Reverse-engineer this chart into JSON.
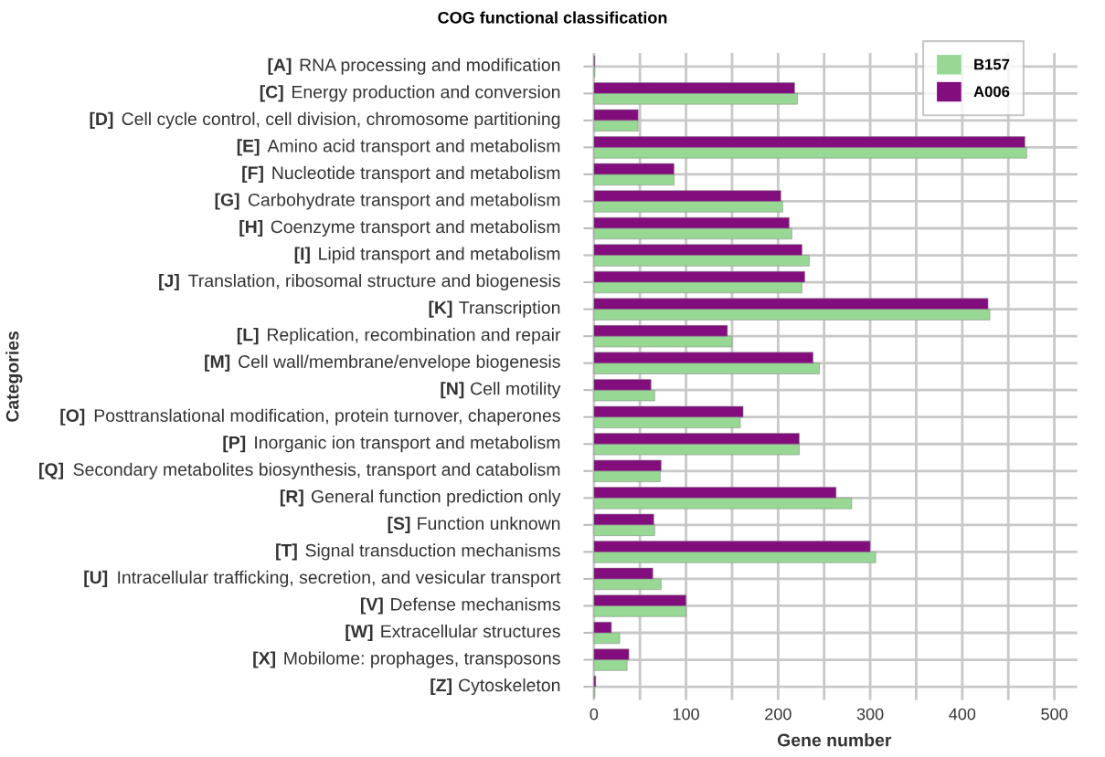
{
  "chart_data": {
    "type": "bar",
    "orientation": "horizontal",
    "title": "COG functional classification",
    "xlabel": "Gene number",
    "ylabel": "Categories",
    "categories": [
      "[A] RNA processing and modification",
      "[C] Energy production and conversion",
      "[D] Cell cycle control, cell division, chromosome partitioning",
      "[E] Amino acid transport and metabolism",
      "[F] Nucleotide transport and metabolism",
      "[G] Carbohydrate transport and metabolism",
      "[H] Coenzyme transport and metabolism",
      "[I] Lipid transport and metabolism",
      "[J] Translation, ribosomal structure and biogenesis",
      "[K] Transcription",
      "[L] Replication, recombination and repair",
      "[M] Cell wall/membrane/envelope biogenesis",
      "[N] Cell motility",
      "[O] Posttranslational modification, protein turnover, chaperones",
      "[P] Inorganic ion transport and metabolism",
      "[Q] Secondary metabolites biosynthesis, transport and catabolism",
      "[R] General function prediction only",
      "[S] Function unknown",
      "[T] Signal transduction mechanisms",
      "[U] Intracellular trafficking, secretion, and vesicular transport",
      "[V] Defense mechanisms",
      "[W] Extracellular structures",
      "[X] Mobilome: prophages, transposons",
      "[Z] Cytoskeleton"
    ],
    "series": [
      {
        "name": "B157",
        "color": "#98d895",
        "values": [
          1,
          221,
          48,
          470,
          87,
          205,
          215,
          234,
          226,
          430,
          150,
          245,
          66,
          159,
          223,
          72,
          280,
          66,
          306,
          73,
          100,
          28,
          36,
          1
        ]
      },
      {
        "name": "A006",
        "color": "#820e7d",
        "values": [
          1,
          218,
          48,
          468,
          87,
          203,
          212,
          226,
          229,
          428,
          145,
          238,
          62,
          162,
          223,
          73,
          263,
          65,
          300,
          64,
          100,
          19,
          38,
          2
        ]
      }
    ],
    "xlim": [
      -3,
      525
    ],
    "xticks": [
      0,
      {
        "value": 50,
        "label": null
      },
      100,
      {
        "value": 150,
        "label": null
      },
      200,
      {
        "value": 250,
        "label": null
      },
      300,
      {
        "value": 350,
        "label": null
      },
      400,
      {
        "value": 450,
        "label": null
      },
      500
    ],
    "grid": true,
    "legend": "top right"
  }
}
